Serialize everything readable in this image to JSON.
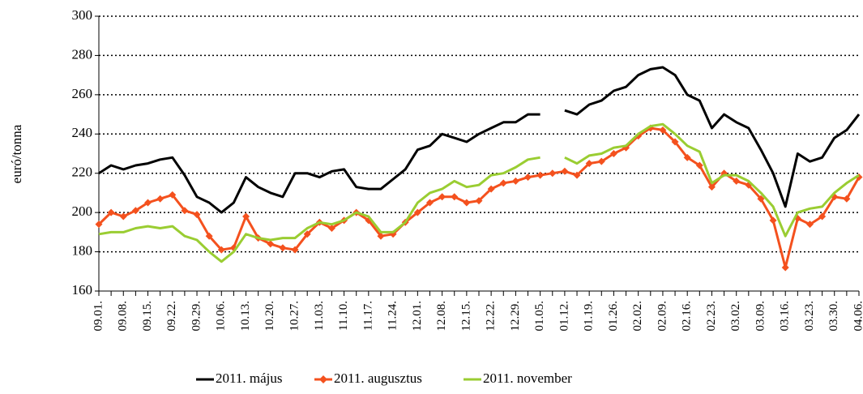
{
  "chart_data": {
    "type": "line",
    "y_label": "euró/tonna",
    "categories": [
      "09.01.",
      null,
      "09.08.",
      null,
      "09.15.",
      null,
      "09.22.",
      null,
      "09.29.",
      null,
      "10.06.",
      null,
      "10.13.",
      null,
      "10.20.",
      null,
      "10.27.",
      null,
      "11.03.",
      null,
      "11.10.",
      null,
      "11.17.",
      null,
      "11.24.",
      null,
      "12.01.",
      null,
      "12.08.",
      null,
      "12.15.",
      null,
      "12.22.",
      null,
      "12.29.",
      null,
      "01.05.",
      null,
      "01.12.",
      null,
      "01.19.",
      null,
      "01.26.",
      null,
      "02.02.",
      null,
      "02.09.",
      null,
      "02.16.",
      null,
      "02.23.",
      null,
      "03.02.",
      null,
      "03.09.",
      null,
      "03.16.",
      null,
      "03.23.",
      null,
      "03.30.",
      null,
      "04.06."
    ],
    "series": [
      {
        "name": "2011. május",
        "color": "#000000",
        "marker": false,
        "values": [
          220,
          224,
          222,
          224,
          225,
          227,
          228,
          219,
          208,
          205,
          200,
          205,
          218,
          213,
          210,
          208,
          220,
          220,
          218,
          221,
          222,
          213,
          212,
          212,
          217,
          222,
          232,
          234,
          240,
          238,
          236,
          240,
          243,
          246,
          246,
          250,
          250,
          null,
          252,
          250,
          255,
          257,
          262,
          264,
          270,
          273,
          274,
          270,
          260,
          257,
          243,
          250,
          246,
          243,
          232,
          220,
          203,
          230,
          226,
          228,
          238,
          242,
          250
        ]
      },
      {
        "name": "2011. augusztus",
        "color": "#f4511e",
        "marker": true,
        "values": [
          194,
          200,
          198,
          201,
          205,
          207,
          209,
          201,
          199,
          188,
          181,
          182,
          198,
          187,
          184,
          182,
          181,
          189,
          195,
          192,
          196,
          200,
          196,
          188,
          189,
          195,
          200,
          205,
          208,
          208,
          205,
          206,
          212,
          215,
          216,
          218,
          219,
          220,
          221,
          219,
          225,
          226,
          230,
          233,
          239,
          243,
          242,
          236,
          228,
          224,
          213,
          220,
          216,
          214,
          207,
          196,
          172,
          197,
          194,
          198,
          208,
          207,
          218
        ]
      },
      {
        "name": "2011. november",
        "color": "#9acd32",
        "marker": false,
        "values": [
          189,
          190,
          190,
          192,
          193,
          192,
          193,
          188,
          186,
          180,
          175,
          180,
          189,
          187,
          186,
          187,
          187,
          192,
          195,
          194,
          196,
          200,
          198,
          190,
          190,
          195,
          205,
          210,
          212,
          216,
          213,
          214,
          219,
          220,
          223,
          227,
          228,
          null,
          228,
          225,
          229,
          230,
          233,
          234,
          240,
          244,
          245,
          240,
          234,
          231,
          215,
          219,
          219,
          216,
          210,
          203,
          188,
          200,
          202,
          203,
          210,
          215,
          219
        ]
      }
    ],
    "ylim": [
      160,
      300
    ],
    "yticks": [
      160,
      180,
      200,
      220,
      240,
      260,
      280,
      300
    ],
    "grid": true,
    "legend": "bottom"
  }
}
